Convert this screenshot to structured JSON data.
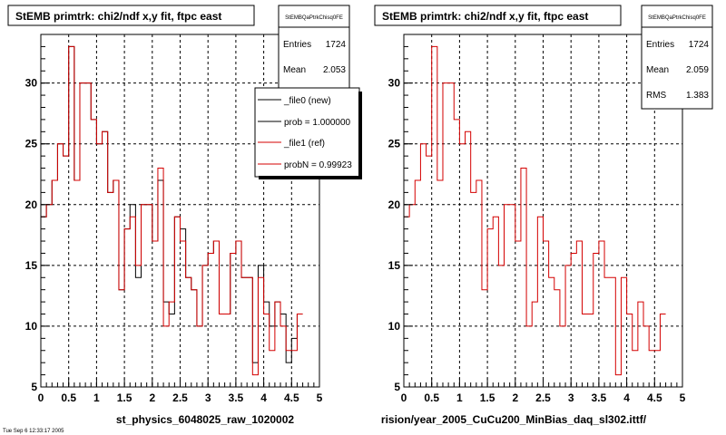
{
  "chart_data": [
    {
      "type": "histogram",
      "title": "StEMB primtrk: chi2/ndf x,y fit, ftpc east",
      "xlabel": "st_physics_6048025_raw_1020002",
      "xlim": [
        0,
        5
      ],
      "ylim": [
        5,
        34
      ],
      "x_ticks": [
        "0",
        "0.5",
        "1",
        "1.5",
        "2",
        "2.5",
        "3",
        "3.5",
        "4",
        "4.5",
        "5"
      ],
      "y_ticks": [
        "5",
        "10",
        "15",
        "20",
        "25",
        "30"
      ],
      "grid": true,
      "bin_width": 0.1,
      "series": [
        {
          "name": "_file0 (new)",
          "color": "#000000",
          "values": [
            19,
            20,
            22,
            25,
            24,
            33,
            22,
            30,
            30,
            27,
            25,
            26,
            21,
            22,
            13,
            18,
            20,
            14,
            20,
            20,
            17,
            22,
            12,
            11,
            19,
            18,
            14,
            13,
            10,
            15,
            16,
            17,
            11,
            11,
            16,
            17,
            14,
            14,
            7,
            15,
            12,
            10,
            12,
            11,
            7,
            9,
            11
          ]
        },
        {
          "name": "_file1 (ref)",
          "color": "#d40000",
          "values": [
            19,
            20,
            22,
            25,
            24,
            33,
            22,
            30,
            30,
            27,
            25,
            26,
            21,
            22,
            13,
            18,
            19,
            15,
            20,
            20,
            17,
            23,
            10,
            12,
            19,
            17,
            14,
            13,
            10,
            15,
            16,
            17,
            11,
            11,
            16,
            17,
            14,
            14,
            6,
            14,
            11,
            8,
            12,
            10,
            8,
            8,
            11
          ]
        }
      ],
      "stats": {
        "box_id": "StEMBQaPtrkChisq0FE",
        "entries": "1724",
        "mean": "2.053",
        "entries_label": "Entries",
        "mean_label": "Mean"
      },
      "legend": {
        "position": "top-right",
        "entries": [
          "_file0 (new)",
          "prob = 1.000000",
          "_file1 (ref)",
          "probN = 0.99923"
        ]
      }
    },
    {
      "type": "histogram",
      "title": "StEMB primtrk: chi2/ndf x,y fit, ftpc east",
      "xlabel": "rision/year_2005_CuCu200_MinBias_daq_sl302.ittf/",
      "xlim": [
        0,
        5
      ],
      "ylim": [
        5,
        34
      ],
      "x_ticks": [
        "0",
        "0.5",
        "1",
        "1.5",
        "2",
        "2.5",
        "3",
        "3.5",
        "4",
        "4.5",
        "5"
      ],
      "y_ticks": [
        "5",
        "10",
        "15",
        "20",
        "25",
        "30"
      ],
      "grid": true,
      "bin_width": 0.1,
      "series": [
        {
          "name": "",
          "color": "#d40000",
          "values": [
            19,
            20,
            22,
            25,
            24,
            33,
            22,
            30,
            30,
            27,
            25,
            26,
            21,
            22,
            13,
            18,
            19,
            15,
            20,
            20,
            17,
            23,
            10,
            12,
            19,
            17,
            14,
            13,
            10,
            15,
            16,
            17,
            11,
            11,
            16,
            17,
            14,
            14,
            6,
            14,
            11,
            8,
            12,
            10,
            8,
            8,
            11
          ]
        }
      ],
      "stats": {
        "box_id": "StEMBQaPtrkChisq0FE",
        "entries": "1724",
        "mean": "2.059",
        "rms": "1.383",
        "entries_label": "Entries",
        "mean_label": "Mean",
        "rms_label": "RMS"
      }
    }
  ],
  "footer": {
    "timestamp": "Tue Sep 6 12:33:17 2005"
  }
}
